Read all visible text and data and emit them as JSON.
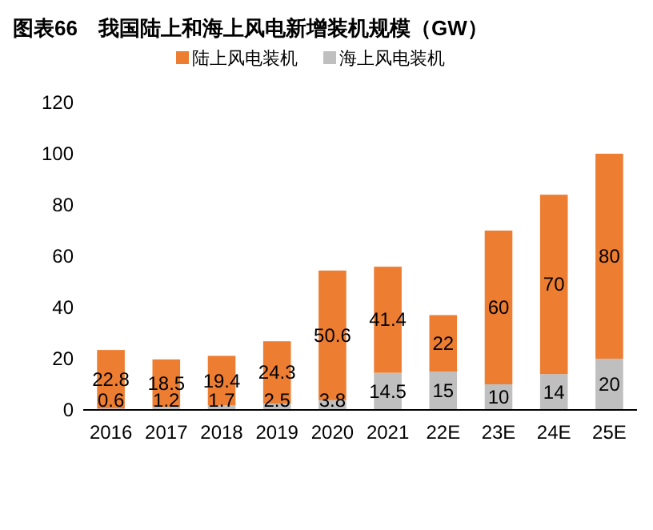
{
  "chart_data": {
    "type": "bar",
    "title": "图表66　我国陆上和海上风电新增装机规模（GW）",
    "stacked": true,
    "categories": [
      "2016",
      "2017",
      "2018",
      "2019",
      "2020",
      "2021",
      "22E",
      "23E",
      "24E",
      "25E"
    ],
    "series": [
      {
        "name": "海上风电装机",
        "color": "#bfbfbf",
        "values": [
          0.6,
          1.2,
          1.7,
          2.5,
          3.8,
          14.5,
          15,
          10,
          14,
          20
        ]
      },
      {
        "name": "陆上风电装机",
        "color": "#ed7d31",
        "values": [
          22.8,
          18.5,
          19.4,
          24.3,
          50.6,
          41.4,
          22,
          60,
          70,
          80
        ]
      }
    ],
    "ylim": [
      0,
      120
    ],
    "yticks": [
      0,
      20,
      40,
      60,
      80,
      100,
      120
    ],
    "data_labels": true,
    "legend": "top",
    "grid": false
  }
}
